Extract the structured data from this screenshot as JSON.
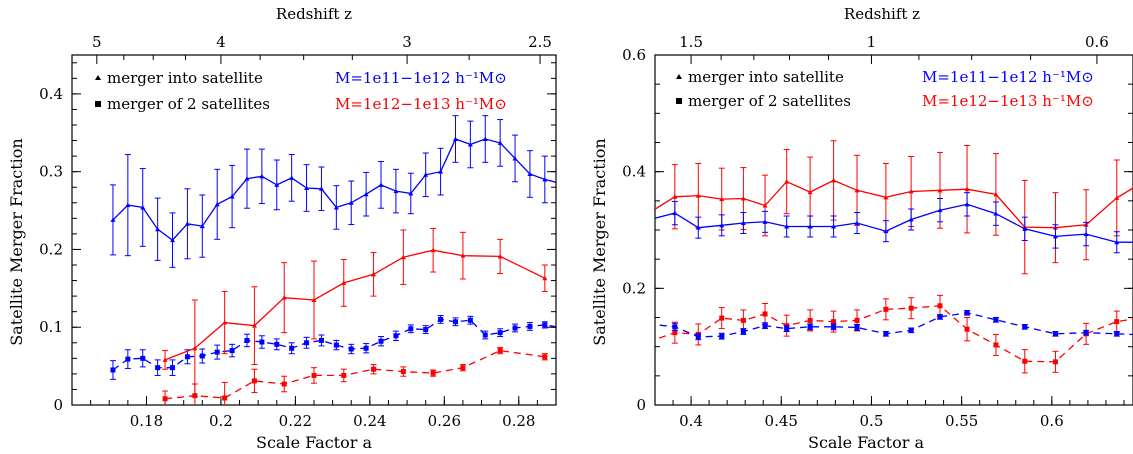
{
  "chart_data": [
    {
      "type": "line",
      "top_axis": {
        "label": "Redshift z",
        "ticks": [
          "5",
          "4",
          "3",
          "2.5"
        ],
        "tick_z": [
          5,
          4,
          3,
          2.5
        ]
      },
      "xlabel": "Scale Factor a",
      "ylabel": "Satellite Merger Fraction",
      "xlim": [
        0.16,
        0.29
      ],
      "ylim": [
        0,
        0.45
      ],
      "xticks": [
        "0.18",
        "0.2",
        "0.22",
        "0.24",
        "0.26",
        "0.28"
      ],
      "xtick_values": [
        0.18,
        0.2,
        0.22,
        0.24,
        0.26,
        0.28
      ],
      "yticks": [
        "0",
        "0.1",
        "0.2",
        "0.3",
        "0.4"
      ],
      "ytick_values": [
        0,
        0.1,
        0.2,
        0.3,
        0.4
      ],
      "legend": {
        "symbols": [
          {
            "marker": "triangle",
            "label": "merger into satellite"
          },
          {
            "marker": "square",
            "label": "merger of 2 satellites"
          }
        ],
        "colors": [
          {
            "label": "M=1e11−1e12 h⁻¹M⊙",
            "color": "#0000ff"
          },
          {
            "label": "M=1e12−1e13 h⁻¹M⊙",
            "color": "#ff0000"
          }
        ]
      },
      "series": [
        {
          "color": "#0000ff",
          "dash": false,
          "x": [
            0.171,
            0.175,
            0.179,
            0.183,
            0.187,
            0.191,
            0.195,
            0.199,
            0.203,
            0.207,
            0.211,
            0.215,
            0.219,
            0.223,
            0.227,
            0.231,
            0.235,
            0.239,
            0.243,
            0.247,
            0.251,
            0.255,
            0.259,
            0.263,
            0.267,
            0.271,
            0.275,
            0.279,
            0.283,
            0.287,
            0.291
          ],
          "y": [
            0.238,
            0.257,
            0.254,
            0.226,
            0.212,
            0.233,
            0.23,
            0.258,
            0.268,
            0.291,
            0.294,
            0.283,
            0.292,
            0.279,
            0.278,
            0.254,
            0.26,
            0.271,
            0.283,
            0.275,
            0.272,
            0.296,
            0.3,
            0.342,
            0.335,
            0.342,
            0.337,
            0.317,
            0.297,
            0.29,
            0.285
          ],
          "err": [
            0.045,
            0.065,
            0.05,
            0.04,
            0.035,
            0.045,
            0.04,
            0.045,
            0.04,
            0.038,
            0.035,
            0.032,
            0.03,
            0.03,
            0.028,
            0.028,
            0.028,
            0.028,
            0.03,
            0.028,
            0.026,
            0.028,
            0.03,
            0.03,
            0.03,
            0.03,
            0.03,
            0.03,
            0.03,
            0.03,
            0.03
          ]
        },
        {
          "color": "#0000ff",
          "dash": true,
          "x": [
            0.171,
            0.175,
            0.179,
            0.183,
            0.187,
            0.191,
            0.195,
            0.199,
            0.203,
            0.207,
            0.211,
            0.215,
            0.219,
            0.223,
            0.227,
            0.231,
            0.235,
            0.239,
            0.243,
            0.247,
            0.251,
            0.255,
            0.259,
            0.263,
            0.267,
            0.271,
            0.275,
            0.279,
            0.283,
            0.287,
            0.291
          ],
          "y": [
            0.045,
            0.059,
            0.06,
            0.048,
            0.048,
            0.062,
            0.063,
            0.068,
            0.07,
            0.083,
            0.081,
            0.078,
            0.073,
            0.08,
            0.083,
            0.077,
            0.072,
            0.073,
            0.082,
            0.089,
            0.098,
            0.097,
            0.11,
            0.107,
            0.109,
            0.09,
            0.093,
            0.099,
            0.101,
            0.103,
            0.1
          ],
          "err": [
            0.012,
            0.012,
            0.011,
            0.01,
            0.01,
            0.009,
            0.009,
            0.009,
            0.008,
            0.008,
            0.008,
            0.007,
            0.007,
            0.007,
            0.007,
            0.006,
            0.006,
            0.006,
            0.006,
            0.006,
            0.005,
            0.005,
            0.005,
            0.005,
            0.005,
            0.005,
            0.005,
            0.005,
            0.005,
            0.004,
            0.004
          ]
        },
        {
          "color": "#ff0000",
          "dash": false,
          "x": [
            0.185,
            0.193,
            0.201,
            0.209,
            0.217,
            0.225,
            0.233,
            0.241,
            0.249,
            0.257,
            0.265,
            0.275,
            0.287
          ],
          "y": [
            0.058,
            0.073,
            0.106,
            0.102,
            0.138,
            0.135,
            0.157,
            0.168,
            0.19,
            0.199,
            0.192,
            0.191,
            0.163
          ],
          "err": [
            0.012,
            0.062,
            0.04,
            0.05,
            0.045,
            0.05,
            0.03,
            0.028,
            0.035,
            0.028,
            0.03,
            0.022,
            0.017
          ]
        },
        {
          "color": "#ff0000",
          "dash": true,
          "x": [
            0.185,
            0.193,
            0.201,
            0.209,
            0.217,
            0.225,
            0.233,
            0.241,
            0.249,
            0.257,
            0.265,
            0.275,
            0.287
          ],
          "y": [
            0.008,
            0.012,
            0.009,
            0.031,
            0.027,
            0.038,
            0.038,
            0.046,
            0.043,
            0.041,
            0.048,
            0.07,
            0.062
          ],
          "err": [
            0.01,
            0.015,
            0.02,
            0.015,
            0.01,
            0.01,
            0.008,
            0.006,
            0.006,
            0.004,
            0.004,
            0.004,
            0.004
          ]
        }
      ]
    },
    {
      "type": "line",
      "top_axis": {
        "label": "Redshift z",
        "ticks": [
          "1.5",
          "1",
          "0.6"
        ],
        "tick_z": [
          1.5,
          1,
          0.6
        ]
      },
      "xlabel": "Scale Factor a",
      "ylabel": "Satellite Merger Fraction",
      "xlim": [
        0.38,
        0.645
      ],
      "ylim": [
        0,
        0.6
      ],
      "xticks": [
        "0.4",
        "0.45",
        "0.5",
        "0.55",
        "0.6"
      ],
      "xtick_values": [
        0.4,
        0.45,
        0.5,
        0.55,
        0.6
      ],
      "yticks": [
        "0",
        "0.2",
        "0.4",
        "0.6"
      ],
      "ytick_values": [
        0,
        0.2,
        0.4,
        0.6
      ],
      "legend": {
        "symbols": [
          {
            "marker": "triangle",
            "label": "merger into satellite"
          },
          {
            "marker": "square",
            "label": "merger of 2 satellites"
          }
        ],
        "colors": [
          {
            "label": "M=1e11−1e12 h⁻¹M⊙",
            "color": "#0000ff"
          },
          {
            "label": "M=1e12−1e13 h⁻¹M⊙",
            "color": "#ff0000"
          }
        ]
      },
      "series": [
        {
          "color": "#ff0000",
          "dash": false,
          "x": [
            0.376,
            0.391,
            0.404,
            0.417,
            0.429,
            0.441,
            0.453,
            0.466,
            0.479,
            0.492,
            0.508,
            0.522,
            0.538,
            0.553,
            0.569,
            0.585,
            0.602,
            0.619,
            0.636,
            0.652
          ],
          "y": [
            0.328,
            0.357,
            0.359,
            0.353,
            0.354,
            0.342,
            0.383,
            0.365,
            0.385,
            0.368,
            0.356,
            0.366,
            0.368,
            0.37,
            0.361,
            0.305,
            0.304,
            0.309,
            0.355,
            0.385
          ],
          "err": [
            0.058,
            0.055,
            0.055,
            0.053,
            0.053,
            0.052,
            0.055,
            0.06,
            0.068,
            0.06,
            0.058,
            0.06,
            0.065,
            0.075,
            0.07,
            0.08,
            0.06,
            0.06,
            0.065,
            0.07
          ]
        },
        {
          "color": "#0000ff",
          "dash": false,
          "x": [
            0.376,
            0.391,
            0.404,
            0.417,
            0.429,
            0.441,
            0.453,
            0.466,
            0.479,
            0.492,
            0.508,
            0.522,
            0.538,
            0.553,
            0.569,
            0.585,
            0.602,
            0.619,
            0.636,
            0.652
          ],
          "y": [
            0.317,
            0.329,
            0.304,
            0.308,
            0.312,
            0.314,
            0.306,
            0.306,
            0.306,
            0.312,
            0.298,
            0.318,
            0.334,
            0.344,
            0.328,
            0.302,
            0.289,
            0.293,
            0.279,
            0.279
          ],
          "err": [
            0.02,
            0.02,
            0.018,
            0.018,
            0.018,
            0.018,
            0.018,
            0.018,
            0.018,
            0.018,
            0.018,
            0.018,
            0.02,
            0.02,
            0.02,
            0.02,
            0.02,
            0.02,
            0.018,
            0.018
          ]
        },
        {
          "color": "#ff0000",
          "dash": true,
          "x": [
            0.376,
            0.391,
            0.404,
            0.417,
            0.429,
            0.441,
            0.453,
            0.466,
            0.479,
            0.492,
            0.508,
            0.522,
            0.538,
            0.553,
            0.569,
            0.585,
            0.602,
            0.619,
            0.636,
            0.652
          ],
          "y": [
            0.108,
            0.124,
            0.121,
            0.149,
            0.145,
            0.156,
            0.136,
            0.145,
            0.143,
            0.145,
            0.164,
            0.166,
            0.17,
            0.13,
            0.103,
            0.075,
            0.074,
            0.122,
            0.143,
            0.151
          ],
          "err": [
            0.018,
            0.018,
            0.018,
            0.018,
            0.018,
            0.018,
            0.018,
            0.018,
            0.018,
            0.018,
            0.018,
            0.018,
            0.018,
            0.02,
            0.018,
            0.02,
            0.018,
            0.018,
            0.018,
            0.018
          ]
        },
        {
          "color": "#0000ff",
          "dash": true,
          "x": [
            0.376,
            0.391,
            0.404,
            0.417,
            0.429,
            0.441,
            0.453,
            0.466,
            0.479,
            0.492,
            0.508,
            0.522,
            0.538,
            0.553,
            0.569,
            0.585,
            0.602,
            0.619,
            0.636,
            0.652
          ],
          "y": [
            0.139,
            0.134,
            0.117,
            0.118,
            0.126,
            0.136,
            0.131,
            0.134,
            0.134,
            0.133,
            0.122,
            0.128,
            0.151,
            0.158,
            0.146,
            0.134,
            0.122,
            0.124,
            0.122,
            0.12
          ],
          "err": [
            0.006,
            0.006,
            0.005,
            0.005,
            0.005,
            0.005,
            0.005,
            0.005,
            0.005,
            0.005,
            0.004,
            0.004,
            0.004,
            0.004,
            0.004,
            0.004,
            0.004,
            0.004,
            0.004,
            0.004
          ]
        }
      ]
    }
  ]
}
